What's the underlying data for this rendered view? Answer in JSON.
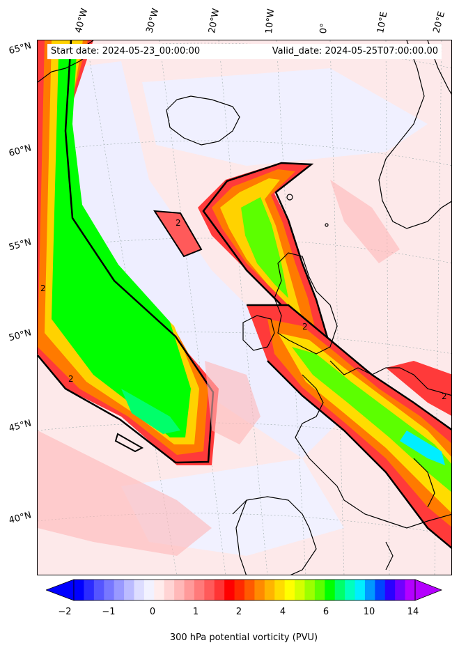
{
  "header": {
    "start_date": "Start date: 2024-05-23_00:00:00",
    "valid_date": "Valid_date: 2024-05-25T07:00:00.00"
  },
  "longitude_labels": [
    "40°W",
    "30°W",
    "20°W",
    "10°W",
    "0°",
    "10°E",
    "20°E"
  ],
  "latitude_labels": [
    "65°N",
    "60°N",
    "55°N",
    "50°N",
    "45°N",
    "40°N"
  ],
  "contour_labels": [
    "2",
    "2",
    "2",
    "2",
    "2"
  ],
  "colorbar": {
    "label": "300 hPa potential vorticity (PVU)",
    "ticks": [
      "−2",
      "−1",
      "0",
      "1",
      "2",
      "4",
      "6",
      "10",
      "14"
    ],
    "colors": [
      "#0000ff",
      "#2b2bff",
      "#5555ff",
      "#7777ff",
      "#9999ff",
      "#bbbbff",
      "#ddddff",
      "#f2f2ff",
      "#ffecec",
      "#ffd4d4",
      "#ffb8b8",
      "#ff9a9a",
      "#ff7a7a",
      "#ff5a5a",
      "#ff3434",
      "#ff0000",
      "#ff2a00",
      "#ff5a00",
      "#ff8a00",
      "#ffb400",
      "#ffdc00",
      "#ffff00",
      "#d4ff00",
      "#9cff00",
      "#5cff00",
      "#00ff00",
      "#00ff6a",
      "#00ffbe",
      "#00eeff",
      "#0099ff",
      "#0044ff",
      "#2a00ff",
      "#7000ff",
      "#b400ff"
    ]
  },
  "colors": {
    "background_pink": "#fde9ea",
    "ridge_blue": "#eeeeff",
    "coastline": "#000000"
  }
}
